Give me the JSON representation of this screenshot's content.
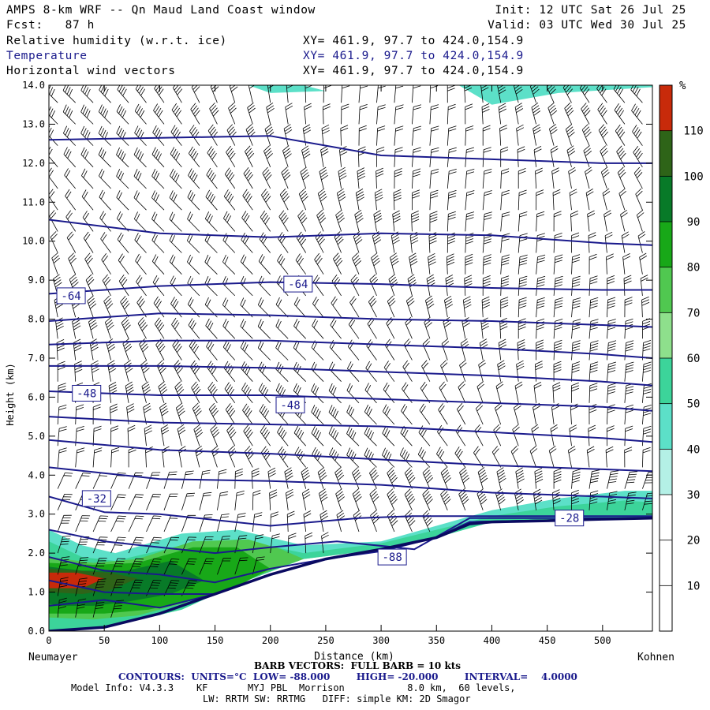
{
  "header": {
    "title_line": "AMPS 8-km WRF -- Qn Maud Land Coast window",
    "init_line": "Init: 12 UTC Sat 26 Jul 25",
    "fcst_line": "Fcst:   87 h",
    "valid_line": "Valid: 03 UTC Wed 30 Jul 25",
    "fields": [
      {
        "name": "Relative humidity (w.r.t. ice)",
        "range": "XY= 461.9, 97.7 to 424.0,154.9",
        "color": "#000000"
      },
      {
        "name": "Temperature",
        "range": "XY= 461.9, 97.7 to 424.0,154.9",
        "color": "#1a1a8c"
      },
      {
        "name": "Horizontal wind vectors",
        "range": "XY= 461.9, 97.7 to 424.0,154.9",
        "color": "#000000"
      }
    ]
  },
  "chart_data": {
    "type": "cross-section",
    "xlabel": "Distance (km)",
    "ylabel": "Height (km)",
    "xlim": [
      0,
      545
    ],
    "ylim": [
      0,
      14
    ],
    "x_ticks": [
      0,
      50,
      100,
      150,
      200,
      250,
      300,
      350,
      400,
      450,
      500
    ],
    "y_ticks": [
      "0.0",
      "1.0",
      "2.0",
      "3.0",
      "4.0",
      "5.0",
      "6.0",
      "7.0",
      "8.0",
      "9.0",
      "10.0",
      "11.0",
      "12.0",
      "13.0",
      "14.0"
    ],
    "left_endpoint": "Neumayer",
    "right_endpoint": "Kohnen",
    "terrain": {
      "x": [
        0,
        50,
        100,
        150,
        200,
        250,
        300,
        350,
        380,
        400,
        450,
        500,
        545
      ],
      "y": [
        0.0,
        0.1,
        0.45,
        0.95,
        1.45,
        1.85,
        2.1,
        2.4,
        2.75,
        2.8,
        2.83,
        2.87,
        2.9
      ]
    },
    "temperature_contours": {
      "units": "°C",
      "low": -88,
      "high": -20,
      "interval": 4,
      "color": "#1a1a8c",
      "labels": [
        {
          "text": "-64",
          "x": 20,
          "y": 8.6
        },
        {
          "text": "-64",
          "x": 225,
          "y": 8.9
        },
        {
          "text": "-48",
          "x": 34,
          "y": 6.1
        },
        {
          "text": "-48",
          "x": 218,
          "y": 5.8
        },
        {
          "text": "-32",
          "x": 43,
          "y": 3.4
        },
        {
          "text": "-28",
          "x": 470,
          "y": 2.9
        },
        {
          "text": "-88",
          "x": 310,
          "y": 1.9
        }
      ],
      "lines": [
        {
          "x": [
            0,
            100,
            200,
            300,
            400,
            500,
            545
          ],
          "y": [
            12.6,
            12.65,
            12.7,
            12.2,
            12.1,
            12.0,
            12.0
          ]
        },
        {
          "x": [
            0,
            100,
            200,
            300,
            400,
            500,
            545
          ],
          "y": [
            10.55,
            10.2,
            10.1,
            10.2,
            10.15,
            9.95,
            9.9
          ]
        },
        {
          "x": [
            0,
            100,
            200,
            300,
            400,
            500,
            545
          ],
          "y": [
            8.65,
            8.85,
            8.95,
            8.9,
            8.8,
            8.75,
            8.75
          ]
        },
        {
          "x": [
            0,
            100,
            200,
            300,
            400,
            500,
            545
          ],
          "y": [
            7.95,
            8.15,
            8.1,
            8.0,
            7.95,
            7.85,
            7.8
          ]
        },
        {
          "x": [
            0,
            100,
            200,
            300,
            400,
            500,
            545
          ],
          "y": [
            7.35,
            7.45,
            7.45,
            7.35,
            7.25,
            7.1,
            7.0
          ]
        },
        {
          "x": [
            0,
            100,
            200,
            300,
            400,
            500,
            545
          ],
          "y": [
            6.8,
            6.8,
            6.75,
            6.65,
            6.55,
            6.4,
            6.3
          ]
        },
        {
          "x": [
            0,
            100,
            200,
            300,
            400,
            500,
            545
          ],
          "y": [
            6.15,
            6.05,
            6.05,
            5.95,
            5.85,
            5.75,
            5.65
          ]
        },
        {
          "x": [
            0,
            100,
            200,
            300,
            400,
            500,
            545
          ],
          "y": [
            5.5,
            5.35,
            5.3,
            5.25,
            5.1,
            4.95,
            4.85
          ]
        },
        {
          "x": [
            0,
            100,
            200,
            300,
            400,
            500,
            545
          ],
          "y": [
            4.9,
            4.65,
            4.55,
            4.4,
            4.25,
            4.15,
            4.1
          ]
        },
        {
          "x": [
            0,
            100,
            200,
            300,
            400,
            500,
            545
          ],
          "y": [
            4.2,
            3.9,
            3.85,
            3.75,
            3.55,
            3.45,
            3.4
          ]
        },
        {
          "x": [
            0,
            50,
            100,
            150,
            200,
            280,
            330,
            400,
            460,
            545
          ],
          "y": [
            3.45,
            3.05,
            3.0,
            2.85,
            2.7,
            2.9,
            2.95,
            2.95,
            2.95,
            2.95
          ]
        },
        {
          "x": [
            0,
            50,
            100,
            150,
            200,
            260,
            330,
            380,
            545
          ],
          "y": [
            2.6,
            2.3,
            2.15,
            2.0,
            2.15,
            2.3,
            2.1,
            2.9,
            2.9
          ]
        },
        {
          "x": [
            0,
            50,
            100,
            150,
            200,
            250,
            300,
            350,
            380,
            545
          ],
          "y": [
            1.9,
            1.55,
            1.45,
            1.25,
            1.6,
            1.85,
            2.05,
            2.4,
            2.8,
            2.9
          ]
        },
        {
          "x": [
            0,
            50,
            100,
            150,
            200,
            250,
            300,
            350,
            380,
            545
          ],
          "y": [
            1.3,
            1.0,
            0.95,
            0.95,
            1.45,
            1.85,
            2.1,
            2.4,
            2.8,
            2.9
          ]
        },
        {
          "x": [
            0,
            50,
            100,
            150,
            200,
            250,
            300,
            350,
            380,
            545
          ],
          "y": [
            0.65,
            0.8,
            0.6,
            0.95,
            1.45,
            1.85,
            2.1,
            2.4,
            2.8,
            2.9
          ]
        }
      ]
    },
    "humidity_fill": {
      "units": "%",
      "regions": [
        {
          "level": 40,
          "x": [
            0,
            30,
            60,
            120,
            170,
            230,
            300,
            350,
            400,
            460,
            520,
            545,
            545,
            520,
            460,
            400,
            350,
            300,
            230,
            170,
            120,
            60,
            30,
            0
          ],
          "y": [
            2.6,
            2.2,
            2.0,
            2.5,
            2.6,
            2.2,
            2.3,
            2.7,
            3.1,
            3.4,
            3.6,
            3.6,
            2.9,
            2.87,
            2.83,
            2.8,
            2.4,
            2.1,
            1.85,
            1.2,
            0.55,
            0.15,
            0.05,
            0.0
          ]
        },
        {
          "level": 50,
          "x": [
            0,
            30,
            60,
            120,
            170,
            230,
            300,
            350,
            400,
            460,
            520,
            545,
            545,
            520,
            460,
            400,
            350,
            300,
            230,
            170,
            120,
            60,
            30,
            0
          ],
          "y": [
            2.3,
            1.9,
            1.8,
            2.2,
            2.35,
            2.0,
            2.25,
            2.6,
            2.95,
            3.2,
            3.35,
            3.3,
            2.9,
            2.87,
            2.83,
            2.8,
            2.4,
            2.1,
            1.85,
            1.2,
            0.55,
            0.15,
            0.05,
            0.0
          ]
        },
        {
          "level": 70,
          "x": [
            0,
            40,
            80,
            130,
            180,
            210,
            230,
            200,
            160,
            120,
            80,
            40,
            0
          ],
          "y": [
            1.9,
            1.75,
            1.85,
            2.3,
            2.35,
            2.1,
            1.85,
            1.55,
            1.1,
            0.7,
            0.4,
            0.3,
            0.35
          ]
        },
        {
          "level": 80,
          "x": [
            0,
            40,
            80,
            130,
            170,
            200,
            170,
            130,
            90,
            50,
            20,
            0
          ],
          "y": [
            1.75,
            1.7,
            1.75,
            2.15,
            2.15,
            1.6,
            1.15,
            0.8,
            0.55,
            0.45,
            0.45,
            0.45
          ]
        },
        {
          "level": 90,
          "x": [
            0,
            30,
            70,
            110,
            140,
            110,
            70,
            40,
            10,
            0
          ],
          "y": [
            1.65,
            1.55,
            1.55,
            1.8,
            1.3,
            0.95,
            0.75,
            0.65,
            0.65,
            0.7
          ]
        },
        {
          "level": 100,
          "x": [
            0,
            25,
            55,
            80,
            55,
            30,
            0
          ],
          "y": [
            1.6,
            1.55,
            1.5,
            1.35,
            1.05,
            0.95,
            1.0
          ]
        },
        {
          "level": 110,
          "x": [
            0,
            25,
            50,
            30,
            0
          ],
          "y": [
            1.5,
            1.5,
            1.35,
            1.1,
            1.1
          ]
        },
        {
          "level": 40,
          "x": [
            180,
            230,
            250,
            200
          ],
          "y": [
            14.0,
            14.0,
            13.85,
            13.8
          ]
        },
        {
          "level": 40,
          "x": [
            370,
            400,
            460,
            545,
            545,
            480,
            420,
            385
          ],
          "y": [
            14.0,
            13.5,
            13.8,
            13.95,
            14.0,
            14.0,
            14.0,
            14.0
          ]
        }
      ]
    },
    "colorbar": {
      "unit_label": "%",
      "levels": [
        10,
        20,
        30,
        40,
        50,
        60,
        70,
        80,
        90,
        100,
        110
      ],
      "colors": [
        "#ffffff",
        "#ffffff",
        "#ffffff",
        "#b4f0e6",
        "#5ce0c8",
        "#3cd49a",
        "#8ee08c",
        "#50c850",
        "#18a818",
        "#087a28",
        "#2e6418",
        "#c82a0a"
      ]
    },
    "wind_barbs": {
      "full_barb_kts": 10,
      "x_spacing_km": 16,
      "y_spacing_km": 0.55
    }
  },
  "footer": {
    "barb_line": "BARB VECTORS:  FULL BARB = 10 kts",
    "contours_line": "CONTOURS:  UNITS=°C  LOW= -88.000        HIGH= -20.000        INTERVAL=    4.0000",
    "model_line1": "Model Info: V4.3.3    KF       MYJ PBL  Morrison           8.0 km,  60 levels,",
    "model_line2": "LW: RRTM SW: RRTMG   DIFF: simple KM: 2D Smagor"
  }
}
